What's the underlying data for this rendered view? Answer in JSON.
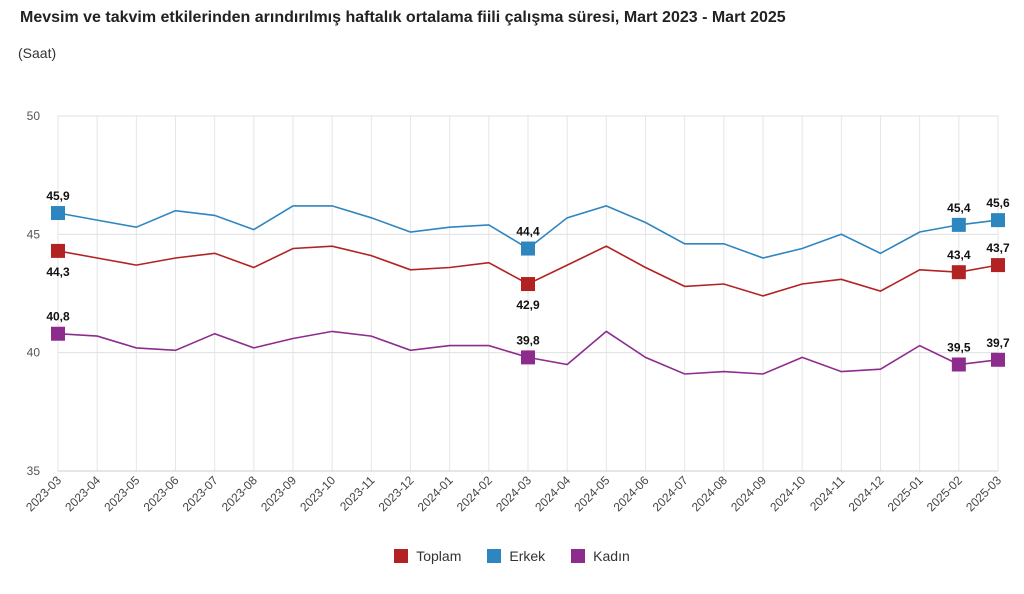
{
  "title": "Mevsim ve takvim etkilerinden arındırılmış haftalık ortalama fiili çalışma süresi, Mart 2023 - Mart 2025",
  "subtitle": "(Saat)",
  "chart_data": {
    "type": "line",
    "categories": [
      "2023-03",
      "2023-04",
      "2023-05",
      "2023-06",
      "2023-07",
      "2023-08",
      "2023-09",
      "2023-10",
      "2023-11",
      "2023-12",
      "2024-01",
      "2024-02",
      "2024-03",
      "2024-04",
      "2024-05",
      "2024-06",
      "2024-07",
      "2024-08",
      "2024-09",
      "2024-10",
      "2024-11",
      "2024-12",
      "2025-01",
      "2025-02",
      "2025-03"
    ],
    "ylim": [
      35,
      50
    ],
    "yticks": [
      35,
      40,
      45,
      50
    ],
    "grid": true,
    "legend_position": "bottom",
    "series": [
      {
        "name": "Toplam",
        "color": "#b22222",
        "values": [
          44.3,
          44.0,
          43.7,
          44.0,
          44.2,
          43.6,
          44.4,
          44.5,
          44.1,
          43.5,
          43.6,
          43.8,
          42.9,
          43.7,
          44.5,
          43.6,
          42.8,
          42.9,
          42.4,
          42.9,
          43.1,
          42.6,
          43.5,
          43.4,
          43.7
        ],
        "labels": {
          "0": "44,3",
          "12": "42,9",
          "23": "43,4",
          "24": "43,7"
        },
        "label_side": "below-first-mark-then-above"
      },
      {
        "name": "Erkek",
        "color": "#2e86c1",
        "values": [
          45.9,
          45.6,
          45.3,
          46.0,
          45.8,
          45.2,
          46.2,
          46.2,
          45.7,
          45.1,
          45.3,
          45.4,
          44.4,
          45.7,
          46.2,
          45.5,
          44.6,
          44.6,
          44.0,
          44.4,
          45.0,
          44.2,
          45.1,
          45.4,
          45.6
        ],
        "labels": {
          "0": "45,9",
          "12": "44,4",
          "23": "45,4",
          "24": "45,6"
        }
      },
      {
        "name": "Kadın",
        "color": "#8e2c8e",
        "values": [
          40.8,
          40.7,
          40.2,
          40.1,
          40.8,
          40.2,
          40.6,
          40.9,
          40.7,
          40.1,
          40.3,
          40.3,
          39.8,
          39.5,
          40.9,
          39.8,
          39.1,
          39.2,
          39.1,
          39.8,
          39.2,
          39.3,
          40.3,
          39.5,
          39.7
        ],
        "labels": {
          "0": "40,8",
          "12": "39,8",
          "23": "39,5",
          "24": "39,7"
        }
      }
    ]
  }
}
